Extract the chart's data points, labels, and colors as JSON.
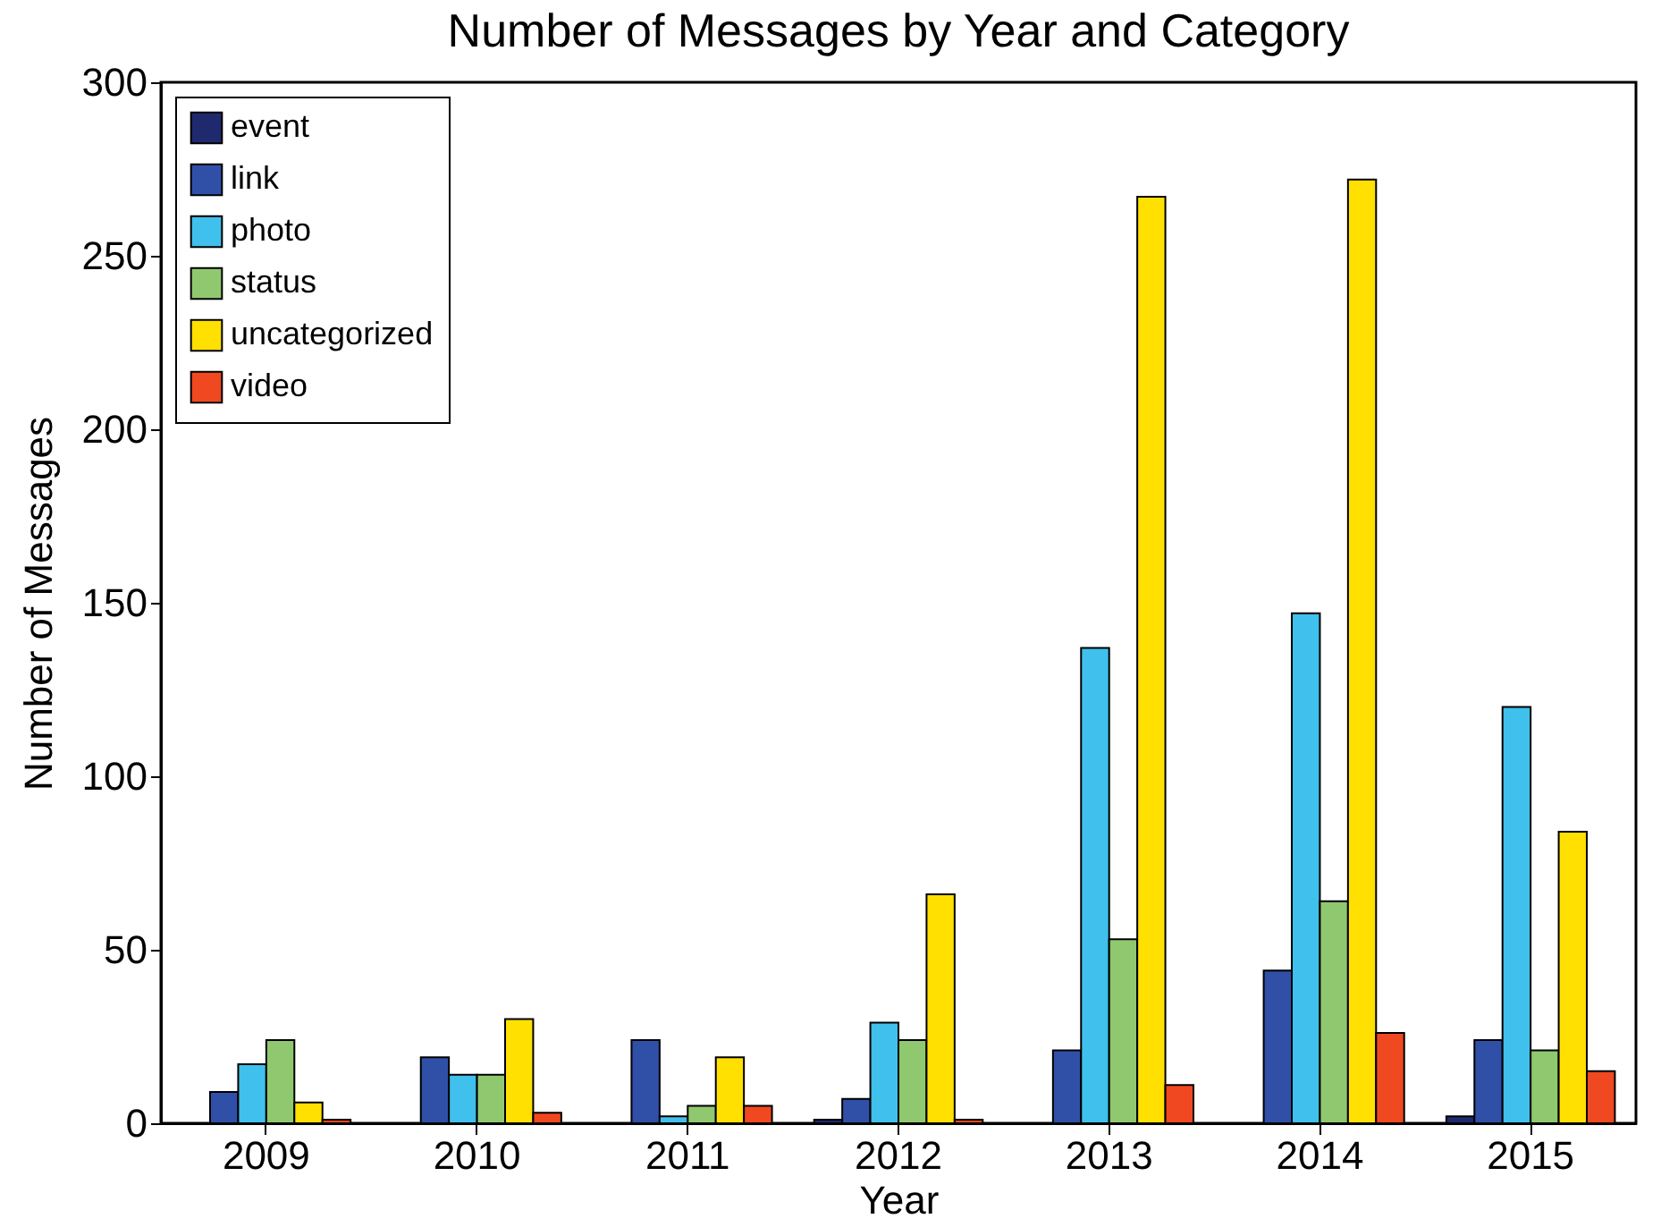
{
  "chart_data": {
    "type": "bar",
    "title": "Number of Messages by Year and Category",
    "xlabel": "Year",
    "ylabel": "Number of Messages",
    "categories": [
      "2009",
      "2010",
      "2011",
      "2012",
      "2013",
      "2014",
      "2015"
    ],
    "series": [
      {
        "name": "event",
        "color": "#1f2a6e",
        "values": [
          null,
          null,
          null,
          1,
          null,
          null,
          2
        ]
      },
      {
        "name": "link",
        "color": "#3050a8",
        "values": [
          9,
          19,
          24,
          7,
          21,
          44,
          24
        ]
      },
      {
        "name": "photo",
        "color": "#40c0ec",
        "values": [
          17,
          14,
          2,
          29,
          137,
          147,
          120
        ]
      },
      {
        "name": "status",
        "color": "#90c870",
        "values": [
          24,
          14,
          5,
          24,
          53,
          64,
          21
        ]
      },
      {
        "name": "uncategorized",
        "color": "#ffe000",
        "values": [
          6,
          30,
          19,
          66,
          267,
          272,
          84
        ]
      },
      {
        "name": "video",
        "color": "#f04820",
        "values": [
          1,
          3,
          5,
          1,
          11,
          26,
          15
        ]
      }
    ],
    "ylim": [
      0,
      300
    ],
    "yticks": [
      0,
      50,
      100,
      150,
      200,
      250,
      300
    ],
    "grid": false,
    "legend": "top left"
  }
}
